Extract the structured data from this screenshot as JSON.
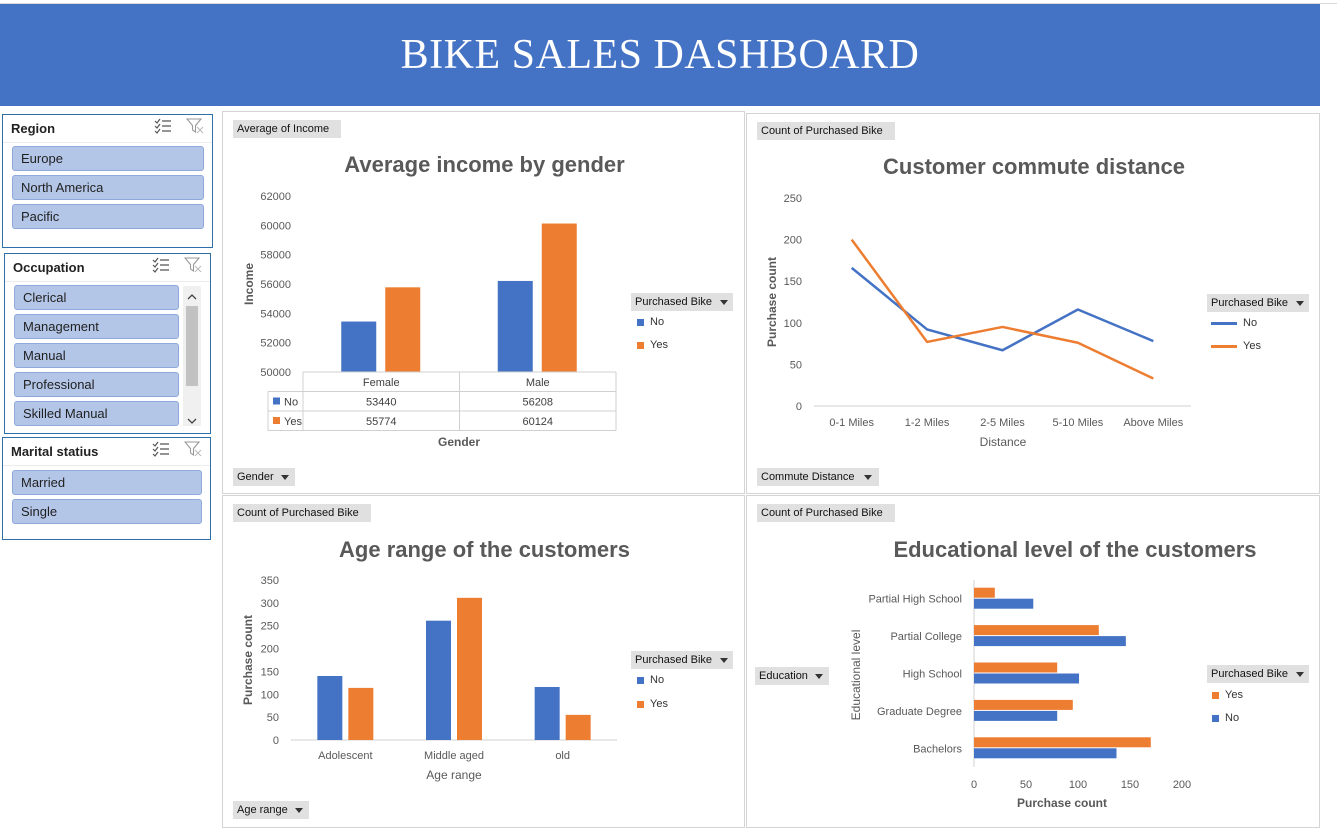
{
  "banner": {
    "title": "BIKE SALES DASHBOARD"
  },
  "colors": {
    "banner": "#4472c4",
    "no": "#4472c4",
    "yes": "#ed7d31",
    "slicer_item": "#b4c6e7"
  },
  "slicers": {
    "region": {
      "title": "Region",
      "items": [
        "Europe",
        "North America",
        "Pacific"
      ]
    },
    "occupation": {
      "title": "Occupation",
      "items": [
        "Clerical",
        "Management",
        "Manual",
        "Professional",
        "Skilled Manual"
      ]
    },
    "marital": {
      "title": "Marital statius",
      "items": [
        "Married",
        "Single"
      ]
    }
  },
  "icons": {
    "multiselect": "multi-select-icon",
    "clear_filter": "clear-filter-icon",
    "dropdown": "dropdown-arrow-icon",
    "scroll_up": "scroll-up-icon",
    "scroll_down": "scroll-down-icon"
  },
  "panels": {
    "income": {
      "value_field": "Average of Income",
      "axis_field": "Gender",
      "legend_field": "Purchased Bike"
    },
    "commute": {
      "value_field": "Count of Purchased Bike",
      "axis_field": "Commute Distance",
      "legend_field": "Purchased Bike"
    },
    "age": {
      "value_field": "Count of Purchased Bike",
      "axis_field": "Age range",
      "legend_field": "Purchased Bike"
    },
    "education": {
      "value_field": "Count of Purchased Bike",
      "axis_field": "Education",
      "legend_field": "Purchased Bike"
    }
  },
  "chart_data": [
    {
      "id": "income",
      "type": "bar",
      "title": "Average income by gender",
      "xlabel": "Gender",
      "ylabel": "Income",
      "categories": [
        "Female",
        "Male"
      ],
      "series": [
        {
          "name": "No",
          "values": [
            53440,
            56208
          ]
        },
        {
          "name": "Yes",
          "values": [
            55774,
            60124
          ]
        }
      ],
      "ylim": [
        50000,
        62000
      ],
      "yticks": [
        "50000",
        "52000",
        "54000",
        "56000",
        "58000",
        "60000",
        "62000"
      ],
      "data_table": {
        "rows": [
          {
            "label": "No",
            "cells": [
              "53440",
              "56208"
            ]
          },
          {
            "label": "Yes",
            "cells": [
              "55774",
              "60124"
            ]
          }
        ]
      },
      "legend": "right",
      "grid": false
    },
    {
      "id": "commute",
      "type": "line",
      "title": "Customer commute distance",
      "xlabel": "Distance",
      "ylabel": "Purchase count",
      "categories": [
        "0-1 Miles",
        "1-2 Miles",
        "2-5 Miles",
        "5-10 Miles",
        "Above Miles"
      ],
      "series": [
        {
          "name": "No",
          "values": [
            166,
            92,
            67,
            116,
            78
          ]
        },
        {
          "name": "Yes",
          "values": [
            200,
            77,
            95,
            76,
            33
          ]
        }
      ],
      "ylim": [
        0,
        250
      ],
      "yticks": [
        "0",
        "50",
        "100",
        "150",
        "200",
        "250"
      ],
      "legend": "right",
      "grid": false
    },
    {
      "id": "age",
      "type": "bar",
      "title": "Age range of the customers",
      "xlabel": "Age range",
      "ylabel": "Purchase count",
      "categories": [
        "Adolescent",
        "Middle aged",
        "old"
      ],
      "series": [
        {
          "name": "No",
          "values": [
            140,
            261,
            116
          ]
        },
        {
          "name": "Yes",
          "values": [
            114,
            311,
            55
          ]
        }
      ],
      "ylim": [
        0,
        350
      ],
      "yticks": [
        "0",
        "50",
        "100",
        "150",
        "200",
        "250",
        "300",
        "350"
      ],
      "legend": "right",
      "grid": false
    },
    {
      "id": "education",
      "type": "bar",
      "orientation": "horizontal",
      "title": "Educational level of the customers",
      "xlabel": "Purchase count",
      "ylabel": "Educational level",
      "categories": [
        "Partial High School",
        "Partial College",
        "High School",
        "Graduate Degree",
        "Bachelors"
      ],
      "series": [
        {
          "name": "Yes",
          "values": [
            20,
            120,
            80,
            95,
            170
          ]
        },
        {
          "name": "No",
          "values": [
            57,
            146,
            101,
            80,
            137
          ]
        }
      ],
      "xlim": [
        0,
        200
      ],
      "xticks": [
        "0",
        "50",
        "100",
        "150",
        "200"
      ],
      "legend": "right",
      "grid": false
    }
  ]
}
